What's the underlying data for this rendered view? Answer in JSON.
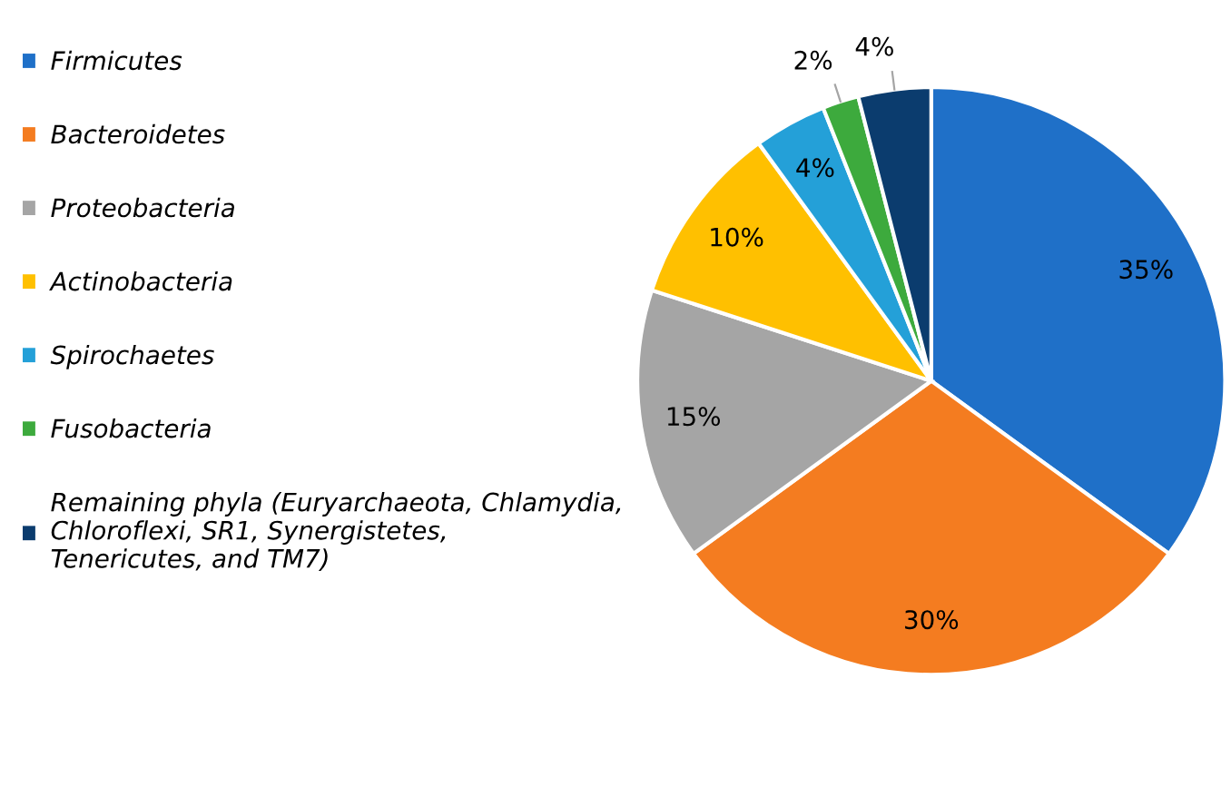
{
  "chart_data": {
    "type": "pie",
    "categories": [
      "Firmicutes",
      "Bacteroidetes",
      "Proteobacteria",
      "Actinobacteria",
      "Spirochaetes",
      "Fusobacteria",
      "Remaining phyla (Euryarchaeota, Chlamydia, Chloroflexi, SR1, Synergistetes, Tenericutes, and TM7)"
    ],
    "values": [
      35,
      30,
      15,
      10,
      4,
      2,
      4
    ],
    "colors": [
      "#1f70c8",
      "#f47c20",
      "#a5a5a5",
      "#ffc000",
      "#24a0d8",
      "#3daa3d",
      "#0b3c6e"
    ],
    "value_labels": [
      "35%",
      "30%",
      "15%",
      "10%",
      "4%",
      "2%",
      "4%"
    ],
    "legend": "left"
  }
}
